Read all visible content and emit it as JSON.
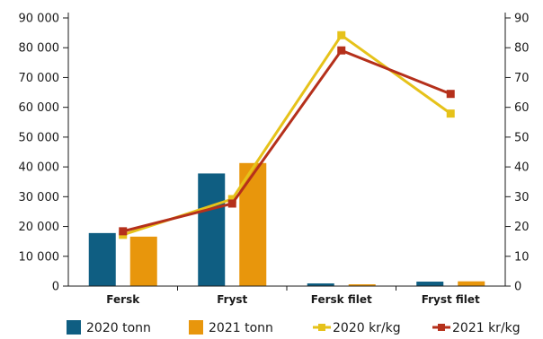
{
  "chart_data": {
    "type": "bar",
    "categories": [
      "Fersk",
      "Fryst",
      "Fersk filet",
      "Fryst filet"
    ],
    "y_left": {
      "ylim": [
        0,
        90000
      ],
      "ticks": [
        0,
        10000,
        20000,
        30000,
        40000,
        50000,
        60000,
        70000,
        80000,
        90000
      ],
      "tick_labels": [
        "0",
        "10 000",
        "20 000",
        "30 000",
        "40 000",
        "50 000",
        "60 000",
        "70 000",
        "80 000",
        "90 000"
      ]
    },
    "y_right": {
      "ylim": [
        0,
        90
      ],
      "ticks": [
        0,
        10,
        20,
        30,
        40,
        50,
        60,
        70,
        80,
        90
      ],
      "tick_labels": [
        "0",
        "10",
        "20",
        "30",
        "40",
        "50",
        "60",
        "70",
        "80",
        "90"
      ]
    },
    "series": [
      {
        "name": "2020 tonn",
        "kind": "bar",
        "axis": "left",
        "color": "#0f5e82",
        "values": [
          17800,
          37800,
          900,
          1500
        ]
      },
      {
        "name": "2021 tonn",
        "kind": "bar",
        "axis": "left",
        "color": "#e8960c",
        "values": [
          16600,
          41300,
          600,
          1600
        ]
      },
      {
        "name": "2020 kr/kg",
        "kind": "line",
        "axis": "right",
        "color": "#e6c21a",
        "values": [
          17.2,
          29.2,
          84.2,
          57.9
        ]
      },
      {
        "name": "2021 kr/kg",
        "kind": "line",
        "axis": "right",
        "color": "#b5301b",
        "values": [
          18.4,
          27.7,
          79.1,
          64.5
        ]
      }
    ],
    "legend_position": "bottom",
    "grid": false
  }
}
